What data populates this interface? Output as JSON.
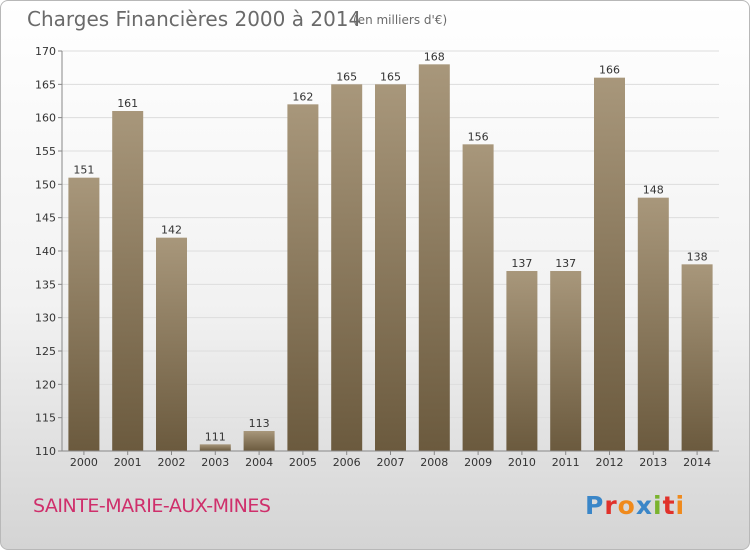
{
  "header": {
    "title": "Charges Financières 2000 à 2014",
    "units": "(en milliers d'€)"
  },
  "footer": {
    "commune": "SAINTE-MARIE-AUX-MINES",
    "logo_text": "Proxiti",
    "logo_colors": [
      "#3a86c8",
      "#e0312b",
      "#f08a1c",
      "#3a86c8",
      "#7ab32e",
      "#e0312b",
      "#f08a1c"
    ]
  },
  "colors": {
    "bar_top": "#a8977b",
    "bar_bottom": "#6b5a3e",
    "grid": "#dddddd",
    "axis": "#888888",
    "commune": "#cf2f6b"
  },
  "chart_data": {
    "type": "bar",
    "categories": [
      "2000",
      "2001",
      "2002",
      "2003",
      "2004",
      "2005",
      "2006",
      "2007",
      "2008",
      "2009",
      "2010",
      "2011",
      "2012",
      "2013",
      "2014"
    ],
    "values": [
      151,
      161,
      142,
      111,
      113,
      162,
      165,
      165,
      168,
      156,
      137,
      137,
      166,
      148,
      138
    ],
    "title": "Charges Financières 2000 à 2014",
    "subtitle": "(en milliers d'€)",
    "xlabel": "",
    "ylabel": "",
    "ylim": [
      110,
      170
    ],
    "yticks": [
      110,
      115,
      120,
      125,
      130,
      135,
      140,
      145,
      150,
      155,
      160,
      165,
      170
    ],
    "grid": true,
    "legend": "none"
  }
}
